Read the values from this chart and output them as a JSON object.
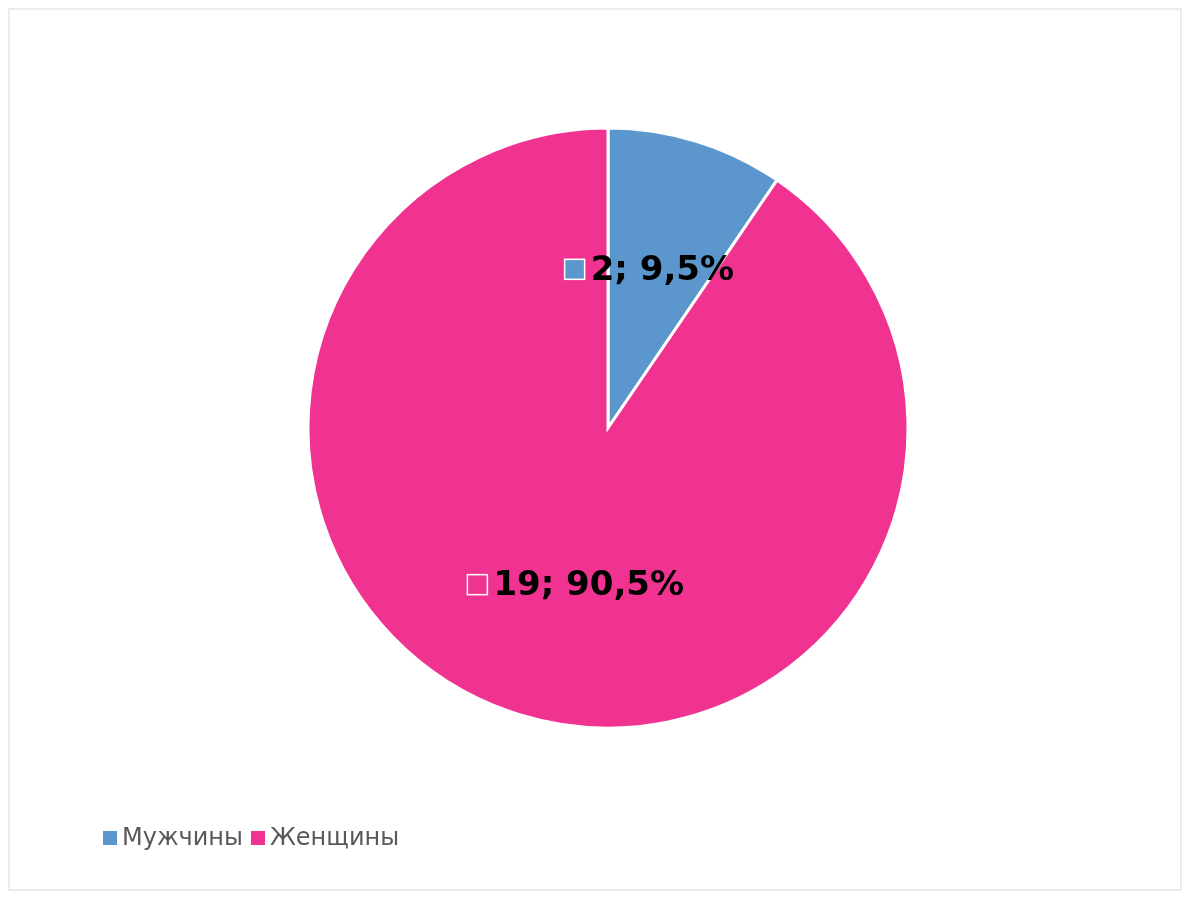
{
  "chart_data": {
    "type": "pie",
    "categories": [
      "Мужчины",
      "Женщины"
    ],
    "values": [
      2,
      19
    ],
    "colors": [
      "#5b97cc",
      "#f03391"
    ],
    "value_labels": [
      "2; 9,5%",
      "19; 90,5%"
    ],
    "legend": "bottom left"
  }
}
